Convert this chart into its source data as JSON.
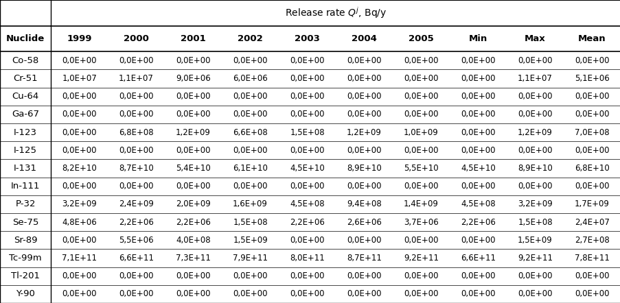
{
  "title_main": "Release rate $Q^j$, Bq/y",
  "col_headers": [
    "1999",
    "2000",
    "2001",
    "2002",
    "2003",
    "2004",
    "2005",
    "Min",
    "Max",
    "Mean"
  ],
  "row_headers": [
    "Co-58",
    "Cr-51",
    "Cu-64",
    "Ga-67",
    "I-123",
    "I-125",
    "I-131",
    "In-111",
    "P-32",
    "Se-75",
    "Sr-89",
    "Tc-99m",
    "Tl-201",
    "Y-90"
  ],
  "table_data": [
    [
      "0,0E+00",
      "0,0E+00",
      "0,0E+00",
      "0,0E+00",
      "0,0E+00",
      "0,0E+00",
      "0,0E+00",
      "0,0E+00",
      "0,0E+00",
      "0,0E+00"
    ],
    [
      "1,0E+07",
      "1,1E+07",
      "9,0E+06",
      "6,0E+06",
      "0,0E+00",
      "0,0E+00",
      "0,0E+00",
      "0,0E+00",
      "1,1E+07",
      "5,1E+06"
    ],
    [
      "0,0E+00",
      "0,0E+00",
      "0,0E+00",
      "0,0E+00",
      "0,0E+00",
      "0,0E+00",
      "0,0E+00",
      "0,0E+00",
      "0,0E+00",
      "0,0E+00"
    ],
    [
      "0,0E+00",
      "0,0E+00",
      "0,0E+00",
      "0,0E+00",
      "0,0E+00",
      "0,0E+00",
      "0,0E+00",
      "0,0E+00",
      "0,0E+00",
      "0,0E+00"
    ],
    [
      "0,0E+00",
      "6,8E+08",
      "1,2E+09",
      "6,6E+08",
      "1,5E+08",
      "1,2E+09",
      "1,0E+09",
      "0,0E+00",
      "1,2E+09",
      "7,0E+08"
    ],
    [
      "0,0E+00",
      "0,0E+00",
      "0,0E+00",
      "0,0E+00",
      "0,0E+00",
      "0,0E+00",
      "0,0E+00",
      "0,0E+00",
      "0,0E+00",
      "0,0E+00"
    ],
    [
      "8,2E+10",
      "8,7E+10",
      "5,4E+10",
      "6,1E+10",
      "4,5E+10",
      "8,9E+10",
      "5,5E+10",
      "4,5E+10",
      "8,9E+10",
      "6,8E+10"
    ],
    [
      "0,0E+00",
      "0,0E+00",
      "0,0E+00",
      "0,0E+00",
      "0,0E+00",
      "0,0E+00",
      "0,0E+00",
      "0,0E+00",
      "0,0E+00",
      "0,0E+00"
    ],
    [
      "3,2E+09",
      "2,4E+09",
      "2,0E+09",
      "1,6E+09",
      "4,5E+08",
      "9,4E+08",
      "1,4E+09",
      "4,5E+08",
      "3,2E+09",
      "1,7E+09"
    ],
    [
      "4,8E+06",
      "2,2E+06",
      "2,2E+06",
      "1,5E+08",
      "2,2E+06",
      "2,6E+06",
      "3,7E+06",
      "2,2E+06",
      "1,5E+08",
      "2,4E+07"
    ],
    [
      "0,0E+00",
      "5,5E+06",
      "4,0E+08",
      "1,5E+09",
      "0,0E+00",
      "0,0E+00",
      "0,0E+00",
      "0,0E+00",
      "1,5E+09",
      "2,7E+08"
    ],
    [
      "7,1E+11",
      "6,6E+11",
      "7,3E+11",
      "7,9E+11",
      "8,0E+11",
      "8,7E+11",
      "9,2E+11",
      "6,6E+11",
      "9,2E+11",
      "7,8E+11"
    ],
    [
      "0,0E+00",
      "0,0E+00",
      "0,0E+00",
      "0,0E+00",
      "0,0E+00",
      "0,0E+00",
      "0,0E+00",
      "0,0E+00",
      "0,0E+00",
      "0,0E+00"
    ],
    [
      "0,0E+00",
      "0,0E+00",
      "0,0E+00",
      "0,0E+00",
      "0,0E+00",
      "0,0E+00",
      "0,0E+00",
      "0,0E+00",
      "0,0E+00",
      "0,0E+00"
    ]
  ],
  "bg_color": "#ffffff",
  "text_color": "#000000",
  "header_fontsize": 9.5,
  "cell_fontsize": 8.5,
  "nuclide_fontsize": 9.5,
  "title_fontsize": 10
}
